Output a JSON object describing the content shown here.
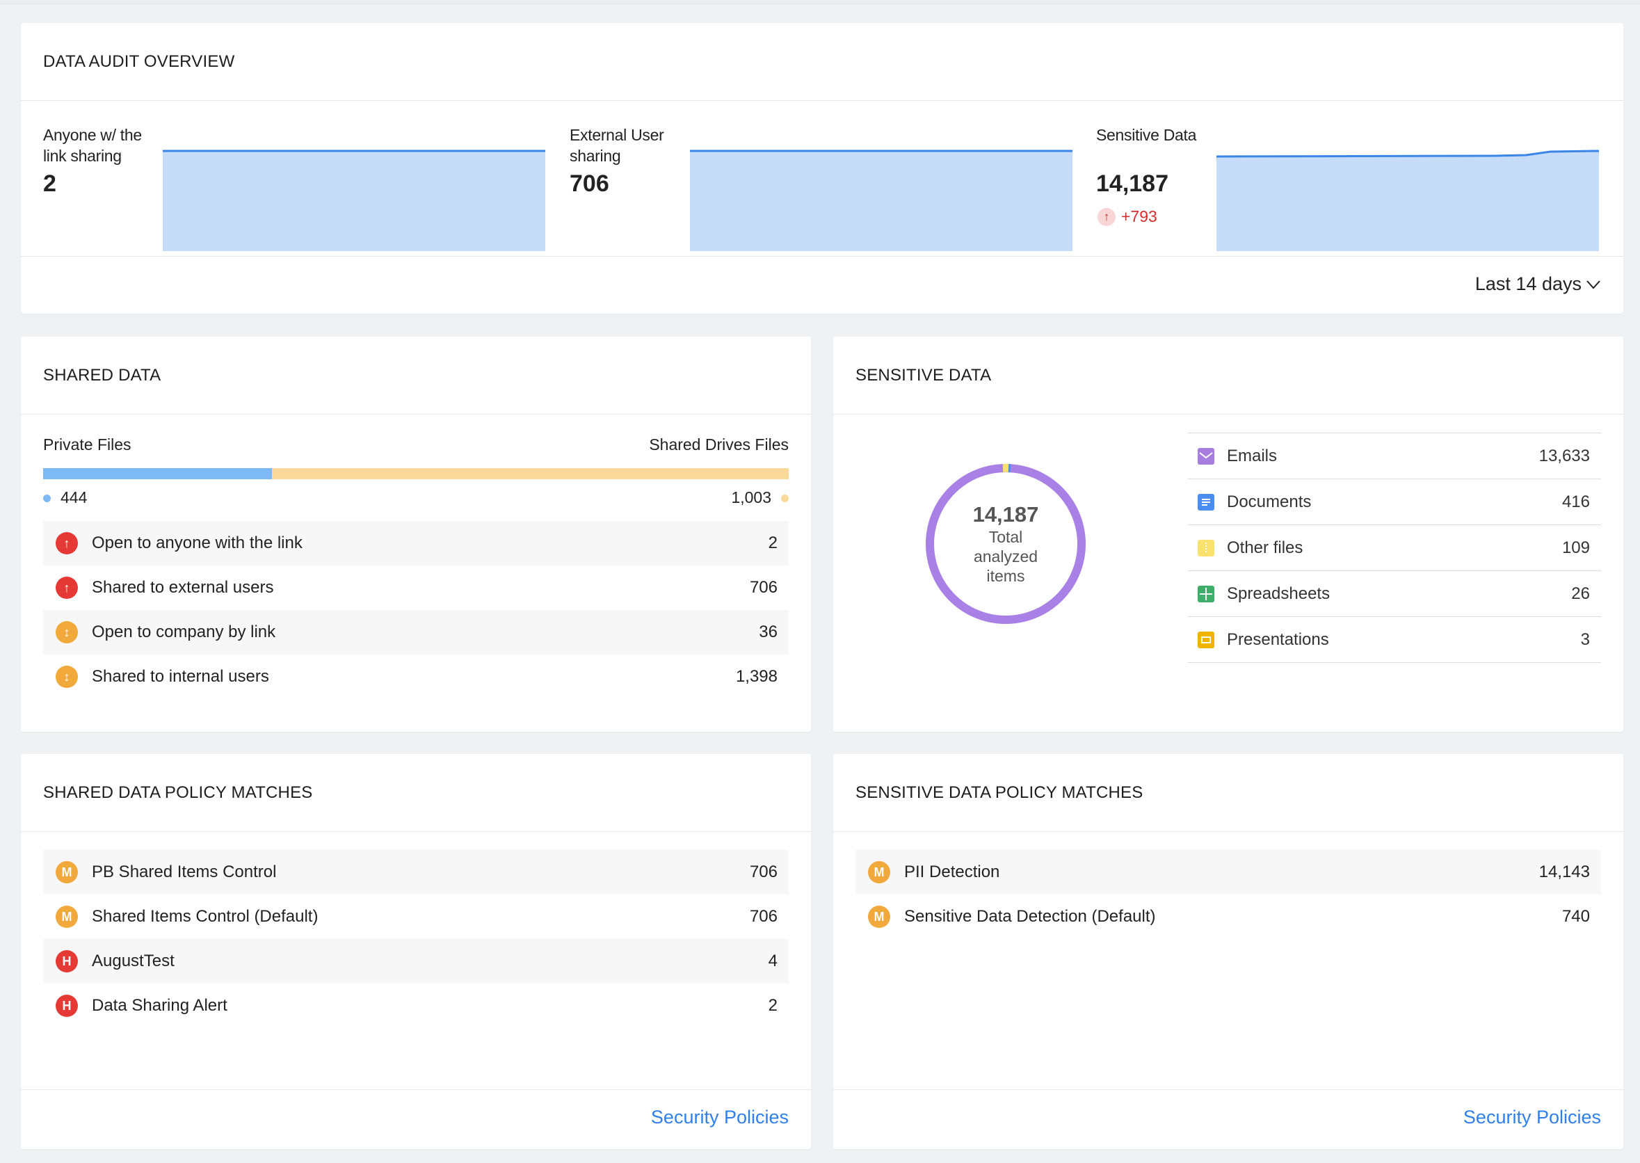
{
  "overview": {
    "title": "DATA AUDIT OVERVIEW",
    "metrics": [
      {
        "label": "Anyone w/ the link sharing",
        "value": "2"
      },
      {
        "label": "External User sharing",
        "value": "706"
      },
      {
        "label": "Sensitive Data",
        "value": "14,187",
        "delta": "+793"
      }
    ],
    "range": "Last 14 days"
  },
  "shared": {
    "title": "SHARED DATA",
    "left_label": "Private Files",
    "right_label": "Shared Drives Files",
    "left_value": "444",
    "right_value": "1,003",
    "left_fraction": 0.307,
    "rows": [
      {
        "label": "Open to anyone with the link",
        "count": "2",
        "level": "red"
      },
      {
        "label": "Shared to external users",
        "count": "706",
        "level": "red"
      },
      {
        "label": "Open to company by link",
        "count": "36",
        "level": "orange"
      },
      {
        "label": "Shared to internal users",
        "count": "1,398",
        "level": "orange"
      }
    ]
  },
  "sensitive": {
    "title": "SENSITIVE DATA",
    "total": "14,187",
    "total_caption": "Total analyzed items",
    "types": [
      {
        "label": "Emails",
        "count": "13,633",
        "icon": "email-icon",
        "color": "#a77de0"
      },
      {
        "label": "Documents",
        "count": "416",
        "icon": "document-icon",
        "color": "#4a8ff0"
      },
      {
        "label": "Other files",
        "count": "109",
        "icon": "file-icon",
        "color": "#f8e16c"
      },
      {
        "label": "Spreadsheets",
        "count": "26",
        "icon": "spreadsheet-icon",
        "color": "#3fae6a"
      },
      {
        "label": "Presentations",
        "count": "3",
        "icon": "presentation-icon",
        "color": "#f0b400"
      }
    ]
  },
  "shared_policy": {
    "title": "SHARED DATA POLICY MATCHES",
    "rows": [
      {
        "badge": "M",
        "label": "PB Shared Items Control",
        "count": "706",
        "level": "orange"
      },
      {
        "badge": "M",
        "label": "Shared Items Control (Default)",
        "count": "706",
        "level": "orange"
      },
      {
        "badge": "H",
        "label": "AugustTest",
        "count": "4",
        "level": "red"
      },
      {
        "badge": "H",
        "label": "Data Sharing Alert",
        "count": "2",
        "level": "red"
      }
    ],
    "link": "Security Policies"
  },
  "sensitive_policy": {
    "title": "SENSITIVE DATA POLICY MATCHES",
    "rows": [
      {
        "badge": "M",
        "label": "PII Detection",
        "count": "14,143",
        "level": "orange"
      },
      {
        "badge": "M",
        "label": "Sensitive Data Detection (Default)",
        "count": "740",
        "level": "orange"
      }
    ],
    "link": "Security Policies"
  }
}
